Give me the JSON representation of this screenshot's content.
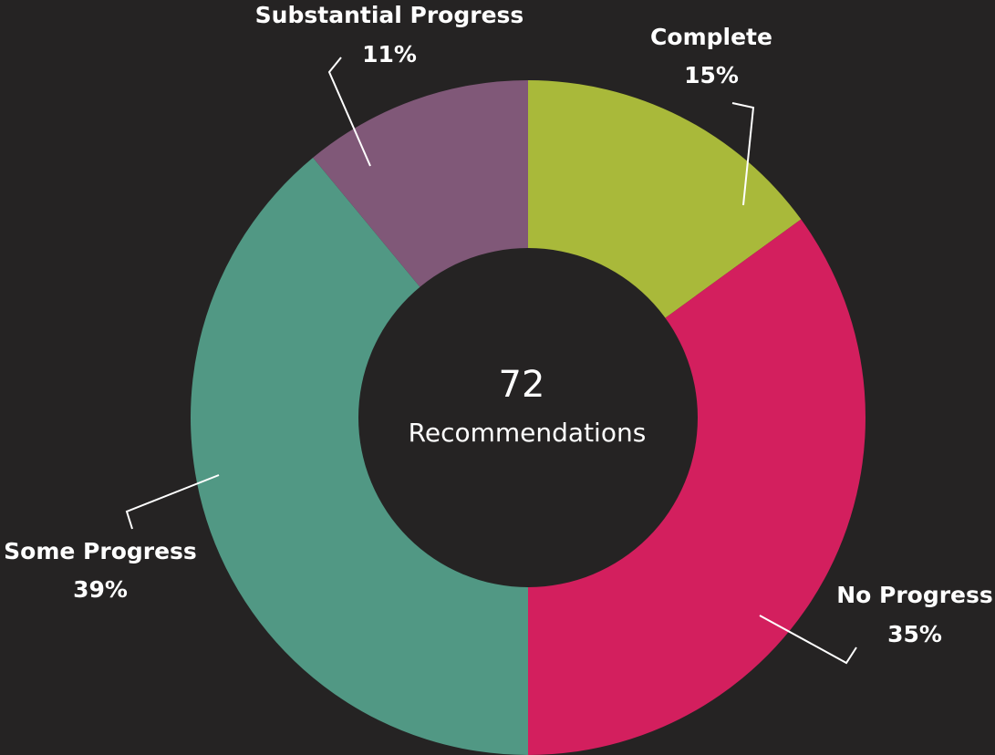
{
  "chart_data": {
    "type": "donut",
    "categories": [
      "Complete",
      "No Progress",
      "Some Progress",
      "Substantial Progress"
    ],
    "values": [
      15,
      35,
      39,
      11
    ],
    "value_labels": [
      "15%",
      "35%",
      "39%",
      "11%"
    ],
    "colors": [
      "#a9b93a",
      "#d31f5e",
      "#519884",
      "#805878"
    ],
    "center_value": 72,
    "center_label": "Recommendations"
  }
}
